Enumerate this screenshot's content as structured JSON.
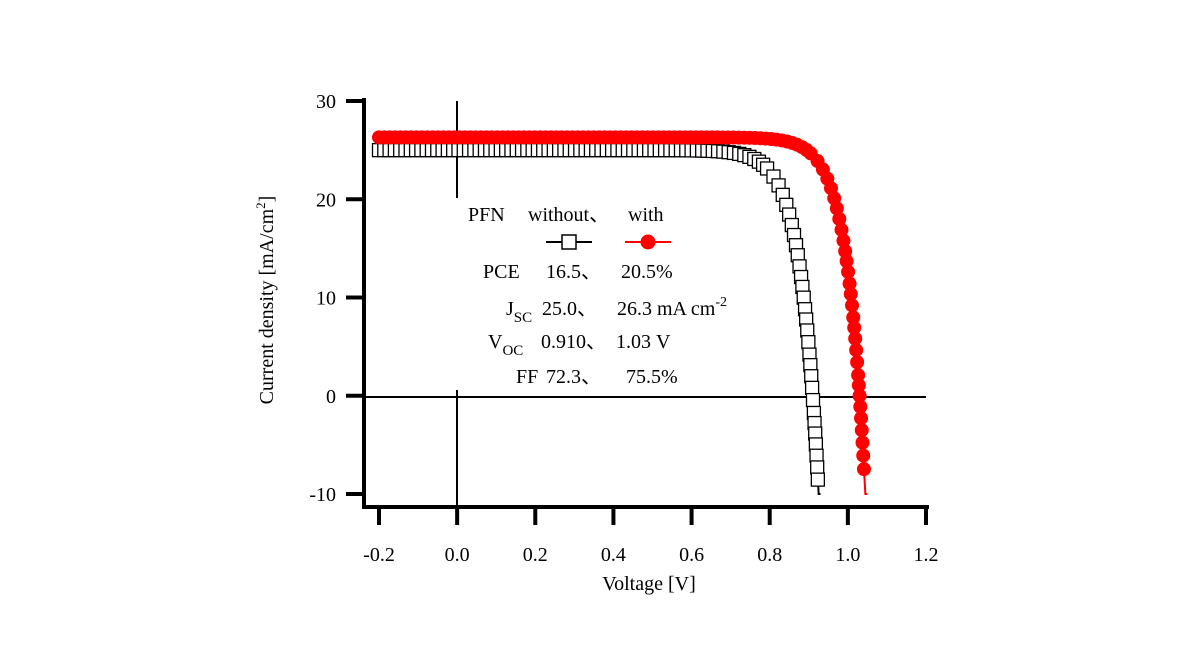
{
  "chart_data": {
    "type": "line",
    "xlabel": "Voltage [V]",
    "ylabel_main": "Current density [mA/cm",
    "ylabel_sup": "2",
    "ylabel_end": "]",
    "xlim": [
      -0.2,
      1.2
    ],
    "ylim": [
      -10,
      30
    ],
    "x_ticks": [
      -0.2,
      0.0,
      0.2,
      0.4,
      0.6,
      0.8,
      1.0,
      1.2
    ],
    "x_tick_labels": [
      "-0.2",
      "0.0",
      "0.2",
      "0.4",
      "0.6",
      "0.8",
      "1.0",
      "1.2"
    ],
    "y_ticks": [
      -10,
      0,
      10,
      20,
      30
    ],
    "y_tick_labels": [
      "-10",
      "0",
      "10",
      "20",
      "30"
    ],
    "series": [
      {
        "marker": "open-square",
        "line_color": "#000000",
        "marker_color": "#000000",
        "jsc": 25.0,
        "voc": 0.91,
        "x_range": [
          -0.2,
          0.93
        ]
      },
      {
        "marker": "filled-circle",
        "line_color": "#ff0000",
        "marker_color": "#ff0000",
        "jsc": 26.3,
        "voc": 1.03,
        "x_range": [
          -0.2,
          1.05
        ]
      }
    ],
    "legend": {
      "pfn": "PFN",
      "without": "without、",
      "with": "with",
      "pce_label": "PCE",
      "pce_values": "16.5、    20.5%",
      "jsc_main": "J",
      "jsc_sub": "SC",
      "jsc_values": "25.0、    26.3 mA cm",
      "jsc_sup": "-2",
      "voc_main": "V",
      "voc_sub": "OC",
      "voc_values": "0.910、  1.03 V",
      "ff_label": "FF",
      "ff_values": "72.3、     75.5%"
    }
  }
}
